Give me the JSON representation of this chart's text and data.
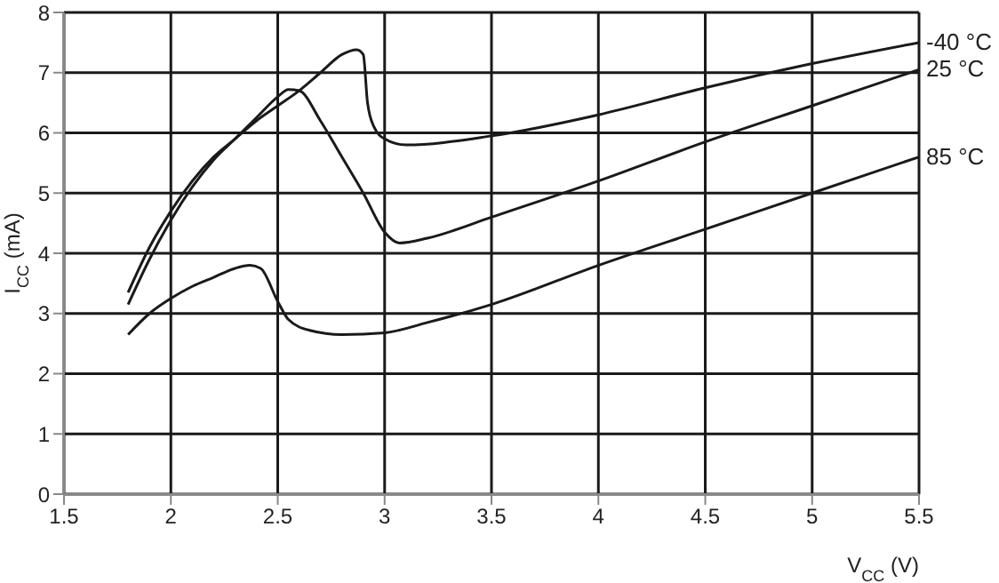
{
  "chart_data": {
    "type": "line",
    "xlabel": "V$_{CC}$ (V)",
    "ylabel": "I$_{CC}$ (mA)",
    "xlim": [
      1.5,
      5.5
    ],
    "xticks": [
      1.5,
      2,
      2.5,
      3,
      3.5,
      4,
      4.5,
      5,
      5.5
    ],
    "ylim": [
      0,
      8
    ],
    "yticks": [
      0,
      1,
      2,
      3,
      4,
      5,
      6,
      7,
      8
    ],
    "grid": true,
    "marker": "none",
    "line_style": "solid",
    "series": [
      {
        "name": "-40 °C",
        "color": "#1a1a1a",
        "x": [
          1.8,
          1.9,
          2.0,
          2.1,
          2.2,
          2.3,
          2.4,
          2.5,
          2.6,
          2.7,
          2.8,
          2.87,
          2.9,
          2.92,
          2.95,
          3.0,
          3.1,
          3.5,
          4.0,
          4.5,
          5.0,
          5.5
        ],
        "values": [
          3.35,
          4.1,
          4.7,
          5.2,
          5.6,
          5.9,
          6.2,
          6.45,
          6.7,
          7.0,
          7.3,
          7.38,
          7.3,
          6.5,
          6.1,
          5.9,
          5.8,
          5.95,
          6.3,
          6.75,
          7.15,
          7.5
        ]
      },
      {
        "name": "25 °C",
        "color": "#1a1a1a",
        "x": [
          1.8,
          1.9,
          2.0,
          2.1,
          2.2,
          2.3,
          2.4,
          2.5,
          2.55,
          2.6,
          2.7,
          2.8,
          2.9,
          3.0,
          3.07,
          3.2,
          3.5,
          4.0,
          4.5,
          5.0,
          5.5
        ],
        "values": [
          3.15,
          3.9,
          4.55,
          5.1,
          5.55,
          5.9,
          6.25,
          6.6,
          6.72,
          6.7,
          6.2,
          5.6,
          5.0,
          4.35,
          4.17,
          4.25,
          4.6,
          5.2,
          5.85,
          6.45,
          7.05
        ]
      },
      {
        "name": "85 °C",
        "color": "#1a1a1a",
        "x": [
          1.8,
          1.9,
          2.0,
          2.1,
          2.2,
          2.3,
          2.37,
          2.42,
          2.5,
          2.55,
          2.65,
          2.8,
          3.0,
          3.2,
          3.5,
          4.0,
          4.5,
          5.0,
          5.5
        ],
        "values": [
          2.65,
          3.0,
          3.25,
          3.45,
          3.6,
          3.75,
          3.8,
          3.75,
          3.2,
          2.9,
          2.72,
          2.65,
          2.68,
          2.85,
          3.15,
          3.8,
          4.4,
          5.0,
          5.6
        ]
      }
    ]
  }
}
